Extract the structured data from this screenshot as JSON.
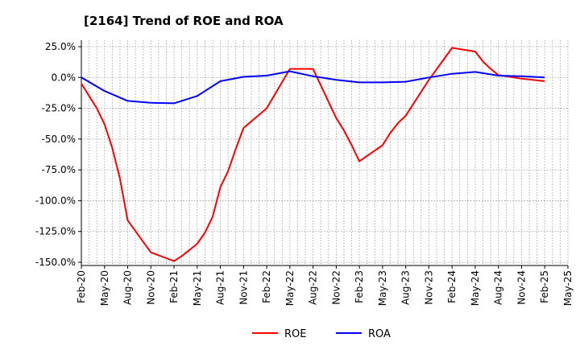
{
  "chart_data": {
    "type": "line",
    "title": "[2164]  Trend of ROE and ROA",
    "xlabel": "",
    "ylabel": "",
    "ylim": [
      -150,
      25
    ],
    "y_ticks": [
      "25.0%",
      "0.0%",
      "-25.0%",
      "-50.0%",
      "-75.0%",
      "-100.0%",
      "-125.0%",
      "-150.0%"
    ],
    "y_tick_values": [
      25,
      0,
      -25,
      -50,
      -75,
      -100,
      -125,
      -150
    ],
    "x_ticks": [
      "Feb-20",
      "May-20",
      "Aug-20",
      "Nov-20",
      "Feb-21",
      "May-21",
      "Aug-21",
      "Nov-21",
      "Feb-22",
      "May-22",
      "Aug-22",
      "Nov-22",
      "Feb-23",
      "May-23",
      "Aug-23",
      "Nov-23",
      "Feb-24",
      "May-24",
      "Aug-24",
      "Nov-24",
      "Feb-25",
      "May-25"
    ],
    "grid": true,
    "legend_position": "bottom-center",
    "series": [
      {
        "name": "ROE",
        "color": "#ff0000",
        "x": [
          "Feb-20",
          "Mar-20",
          "Apr-20",
          "May-20",
          "Jun-20",
          "Jul-20",
          "Aug-20",
          "Nov-20",
          "Feb-21",
          "Mar-21",
          "Apr-21",
          "May-21",
          "Jun-21",
          "Jul-21",
          "Aug-21",
          "Sep-21",
          "Oct-21",
          "Nov-21",
          "Feb-22",
          "May-22",
          "Aug-22",
          "Nov-22",
          "Dec-22",
          "Jan-23",
          "Feb-23",
          "May-23",
          "Jun-23",
          "Jul-23",
          "Aug-23",
          "Nov-23",
          "Feb-24",
          "May-24",
          "Jun-24",
          "Jul-24",
          "Aug-24",
          "Nov-24",
          "Feb-25"
        ],
        "values": [
          -5,
          -15,
          -25,
          -38,
          -57,
          -82,
          -116,
          -142,
          -149,
          -145,
          -140,
          -135,
          -126,
          -113,
          -89,
          -76,
          -58,
          -41,
          -25,
          7,
          7,
          -33,
          -43,
          -55,
          -68,
          -55,
          -45,
          -37,
          -31,
          -2,
          24,
          21,
          13,
          7,
          2,
          -1,
          -3
        ]
      },
      {
        "name": "ROA",
        "color": "#0000ff",
        "x": [
          "Feb-20",
          "May-20",
          "Aug-20",
          "Nov-20",
          "Feb-21",
          "May-21",
          "Aug-21",
          "Nov-21",
          "Feb-22",
          "May-22",
          "Aug-22",
          "Nov-22",
          "Feb-23",
          "May-23",
          "Aug-23",
          "Nov-23",
          "Feb-24",
          "May-24",
          "Aug-24",
          "Nov-24",
          "Feb-25"
        ],
        "values": [
          0,
          -11,
          -19,
          -20.5,
          -21,
          -15,
          -3,
          0.5,
          1.5,
          5,
          1,
          -2,
          -4,
          -4,
          -3.5,
          0,
          3,
          4.5,
          1.5,
          1,
          0
        ]
      }
    ]
  }
}
